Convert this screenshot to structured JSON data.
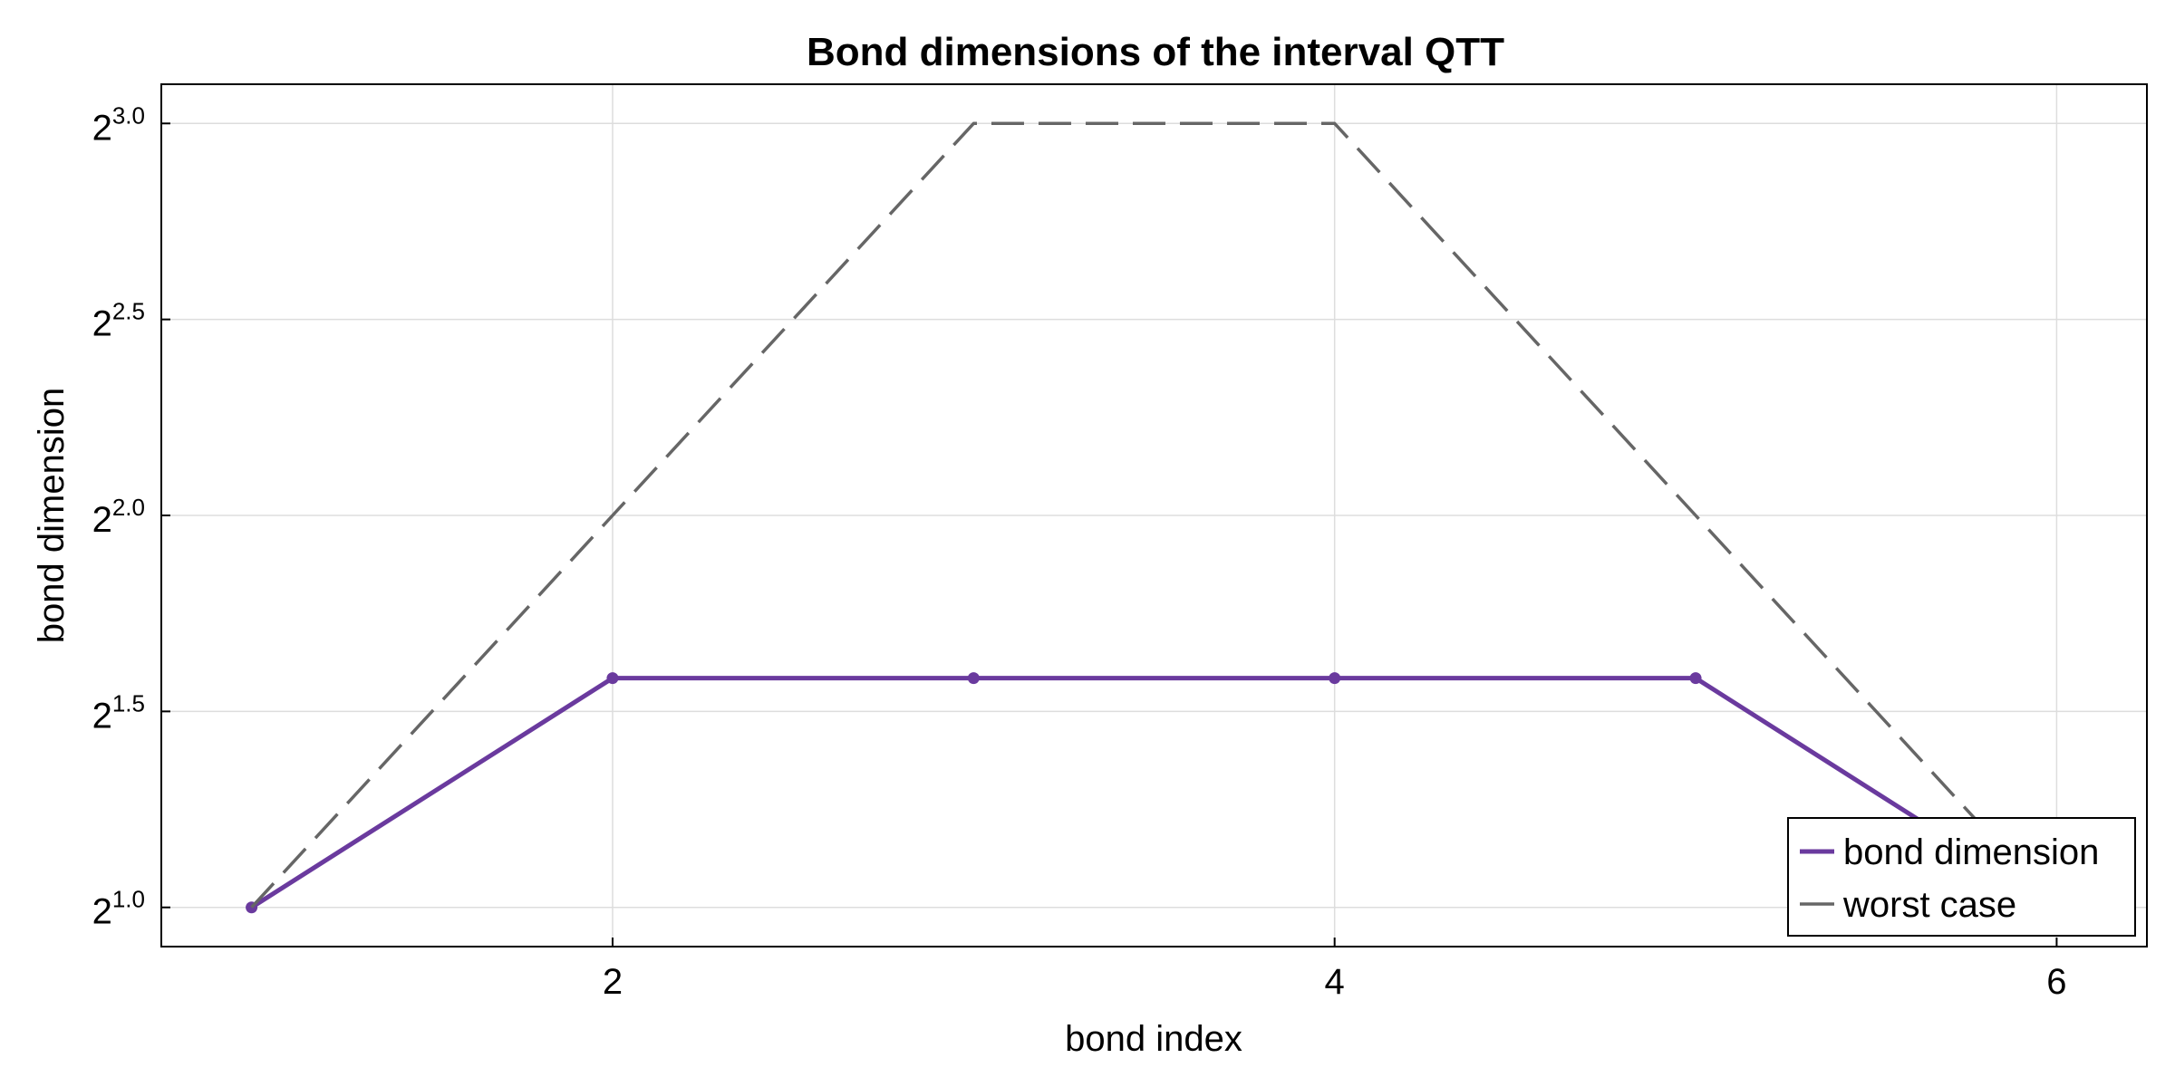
{
  "chart_data": {
    "type": "line",
    "title": "Bond dimensions of the interval QTT",
    "xlabel": "bond index",
    "ylabel": "bond dimension",
    "x_ticks": [
      2,
      4,
      6
    ],
    "y_ticks": [
      {
        "base": "2",
        "exp": "1.0",
        "value": 1.0
      },
      {
        "base": "2",
        "exp": "1.5",
        "value": 1.5
      },
      {
        "base": "2",
        "exp": "2.0",
        "value": 2.0
      },
      {
        "base": "2",
        "exp": "2.5",
        "value": 2.5
      },
      {
        "base": "2",
        "exp": "3.0",
        "value": 3.0
      }
    ],
    "y_scale": "log2",
    "xlim": [
      0.75,
      6.25
    ],
    "ylim_log2": [
      0.9,
      3.1
    ],
    "grid": true,
    "legend_position": "bottom-right",
    "series": [
      {
        "name": "bond dimension",
        "color": "#6a3a9e",
        "style": "solid-with-markers",
        "x": [
          1,
          2,
          3,
          4,
          5,
          6
        ],
        "y": [
          2,
          3,
          3,
          3,
          3,
          2
        ]
      },
      {
        "name": "worst case",
        "color": "#666666",
        "style": "dashed",
        "x": [
          1,
          2,
          3,
          4,
          5,
          6
        ],
        "y": [
          2,
          4,
          8,
          8,
          4,
          2
        ]
      }
    ]
  }
}
